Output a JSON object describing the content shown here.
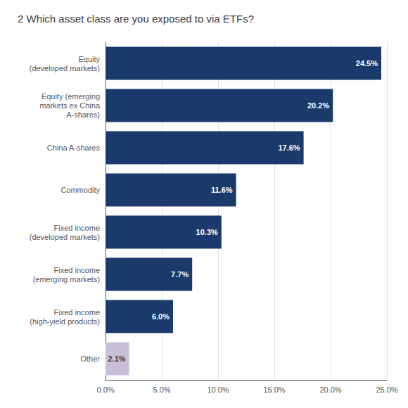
{
  "chart_data": {
    "type": "bar",
    "orientation": "horizontal",
    "title": "2 Which asset class are you exposed to via ETFs?",
    "categories": [
      "Equity\n(developed markets)",
      "Equity (emerging\nmarkets ex China\nA-shares)",
      "China A-shares",
      "Commodity",
      "Fixed income\n(developed markets)",
      "Fixed income\n(emerging markets)",
      "Fixed income\n(high-yield products)",
      "Other"
    ],
    "values": [
      24.5,
      20.2,
      17.6,
      11.6,
      10.3,
      7.7,
      6.0,
      2.1
    ],
    "value_labels": [
      "24.5%",
      "20.2%",
      "17.6%",
      "11.6%",
      "10.3%",
      "7.7%",
      "6.0%",
      "2.1%"
    ],
    "colors": [
      "#1a3a6b",
      "#1a3a6b",
      "#1a3a6b",
      "#1a3a6b",
      "#1a3a6b",
      "#1a3a6b",
      "#1a3a6b",
      "#c8c0d8"
    ],
    "xlim": [
      0,
      25.0
    ],
    "xticks": [
      {
        "value": 0,
        "label": "0.0%"
      },
      {
        "value": 5,
        "label": "5.0%"
      },
      {
        "value": 10,
        "label": "10.0%"
      },
      {
        "value": 15,
        "label": "15.0%"
      },
      {
        "value": 20,
        "label": "20.0%"
      },
      {
        "value": 25,
        "label": "25.0%"
      }
    ],
    "grid": true,
    "data_labels": true
  }
}
